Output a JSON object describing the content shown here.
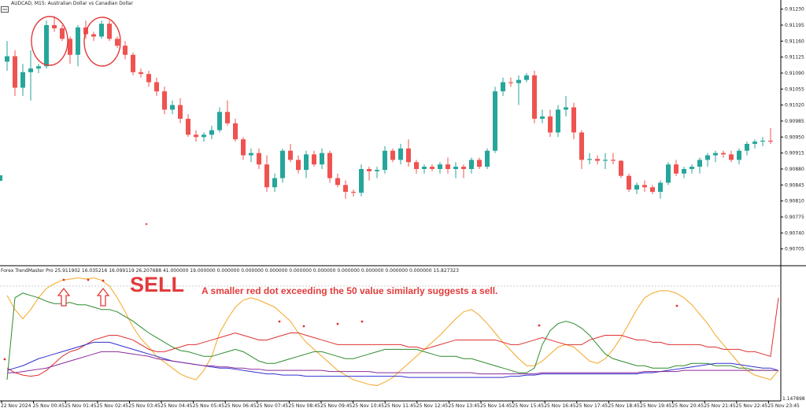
{
  "header": {
    "symbol_title": "AUDCAD, M15:  Australian Dollar vs Canadian Dollar",
    "indicator_title": "Forex TrendMaster Pro 25.911902 16.035216 16.099119 26.207688 41.000000 19.000000 0.000000 0.000000 0.000000 0.000000 0.000000 0.000000 0.000000 0.000000 0.000000 15.827323"
  },
  "annotation": {
    "sell_label": "SELL",
    "note": "A smaller red dot exceeding the 50 value similarly suggests a sell."
  },
  "colors": {
    "bull": "#26a69a",
    "bear": "#ef5350",
    "annotation": "#e23b3b",
    "line_orange": "#f5a623",
    "line_green": "#2e8b2e",
    "line_red": "#e03030",
    "line_blue": "#3030d0",
    "line_purple": "#8a2a9a"
  },
  "icons": [
    "chart-menu-icon",
    "up-arrow-icon",
    "circle-highlight-icon"
  ],
  "chart_data": [
    {
      "type": "candlestick",
      "title": "AUDCAD, M15:  Australian Dollar vs Canadian Dollar",
      "ylim": [
        0.9067,
        0.9125
      ],
      "y_ticks": [
        "0.91230",
        "0.91195",
        "0.91160",
        "0.91125",
        "0.91090",
        "0.91055",
        "0.91020",
        "0.90985",
        "0.90950",
        "0.90915",
        "0.90880",
        "0.90845",
        "0.90810",
        "0.90775",
        "0.90740",
        "0.90705"
      ],
      "x_ticks": [
        "22 Nov 2024",
        "25 Nov 00:45",
        "25 Nov 01:45",
        "25 Nov 02:45",
        "25 Nov 03:45",
        "25 Nov 04:45",
        "25 Nov 05:45",
        "25 Nov 06:45",
        "25 Nov 07:45",
        "25 Nov 08:45",
        "25 Nov 09:45",
        "25 Nov 10:45",
        "25 Nov 11:45",
        "25 Nov 12:45",
        "25 Nov 13:45",
        "25 Nov 14:45",
        "25 Nov 15:45",
        "25 Nov 16:45",
        "25 Nov 17:45",
        "25 Nov 18:45",
        "25 Nov 19:45",
        "25 Nov 20:45",
        "25 Nov 21:45",
        "25 Nov 22:45",
        "25 Nov 23:45"
      ],
      "ohlc": [
        [
          0.91115,
          0.9116,
          0.91095,
          0.91127
        ],
        [
          0.91127,
          0.9114,
          0.9104,
          0.91058
        ],
        [
          0.91058,
          0.9111,
          0.9104,
          0.91092
        ],
        [
          0.91092,
          0.9114,
          0.9103,
          0.911
        ],
        [
          0.911,
          0.9111,
          0.9109,
          0.91105
        ],
        [
          0.91105,
          0.91205,
          0.911,
          0.91195
        ],
        [
          0.91195,
          0.91215,
          0.9118,
          0.91188
        ],
        [
          0.91188,
          0.91195,
          0.9116,
          0.91165
        ],
        [
          0.91165,
          0.9117,
          0.9111,
          0.9113
        ],
        [
          0.9113,
          0.91195,
          0.91105,
          0.9119
        ],
        [
          0.9119,
          0.91205,
          0.91165,
          0.91175
        ],
        [
          0.91175,
          0.9118,
          0.9116,
          0.9117
        ],
        [
          0.9117,
          0.91205,
          0.91165,
          0.91198
        ],
        [
          0.91198,
          0.91205,
          0.9116,
          0.91165
        ],
        [
          0.91165,
          0.9117,
          0.91145,
          0.9115
        ],
        [
          0.9115,
          0.9116,
          0.9112,
          0.9113
        ],
        [
          0.9113,
          0.91135,
          0.91085,
          0.91092
        ],
        [
          0.91092,
          0.911,
          0.9108,
          0.91088
        ],
        [
          0.91088,
          0.91095,
          0.9106,
          0.9107
        ],
        [
          0.9107,
          0.9108,
          0.9104,
          0.9105
        ],
        [
          0.9105,
          0.9106,
          0.91,
          0.9101
        ],
        [
          0.9101,
          0.9103,
          0.91,
          0.9102
        ],
        [
          0.9102,
          0.91035,
          0.9098,
          0.9099
        ],
        [
          0.9099,
          0.91,
          0.9095,
          0.90955
        ],
        [
          0.90955,
          0.90965,
          0.9094,
          0.9095
        ],
        [
          0.9095,
          0.9096,
          0.9094,
          0.90955
        ],
        [
          0.90955,
          0.90975,
          0.90945,
          0.90965
        ],
        [
          0.90965,
          0.91015,
          0.9096,
          0.91005
        ],
        [
          0.91005,
          0.9103,
          0.90975,
          0.9098
        ],
        [
          0.9098,
          0.9099,
          0.9094,
          0.90945
        ],
        [
          0.90945,
          0.9095,
          0.909,
          0.9091
        ],
        [
          0.9091,
          0.90925,
          0.90895,
          0.90915
        ],
        [
          0.90915,
          0.90925,
          0.9088,
          0.9089
        ],
        [
          0.9089,
          0.9091,
          0.9083,
          0.9084
        ],
        [
          0.9084,
          0.9087,
          0.9083,
          0.9086
        ],
        [
          0.9086,
          0.90925,
          0.9085,
          0.9092
        ],
        [
          0.9092,
          0.90935,
          0.90895,
          0.909
        ],
        [
          0.909,
          0.9091,
          0.9087,
          0.90878
        ],
        [
          0.90878,
          0.9092,
          0.9086,
          0.90912
        ],
        [
          0.90912,
          0.9092,
          0.90885,
          0.9089
        ],
        [
          0.9089,
          0.90925,
          0.9088,
          0.90915
        ],
        [
          0.90915,
          0.9092,
          0.9085,
          0.9086
        ],
        [
          0.9086,
          0.9087,
          0.9084,
          0.90845
        ],
        [
          0.90845,
          0.90855,
          0.90815,
          0.9083
        ],
        [
          0.9083,
          0.90835,
          0.9082,
          0.90828
        ],
        [
          0.90828,
          0.9089,
          0.9082,
          0.9088
        ],
        [
          0.9088,
          0.90885,
          0.90855,
          0.90875
        ],
        [
          0.90875,
          0.90885,
          0.9086,
          0.90878
        ],
        [
          0.90878,
          0.9093,
          0.9087,
          0.9092
        ],
        [
          0.9092,
          0.90925,
          0.90895,
          0.909
        ],
        [
          0.909,
          0.90935,
          0.9089,
          0.90925
        ],
        [
          0.90925,
          0.90945,
          0.90885,
          0.90895
        ],
        [
          0.90895,
          0.909,
          0.9087,
          0.9088
        ],
        [
          0.9088,
          0.9089,
          0.9087,
          0.90885
        ],
        [
          0.90885,
          0.9089,
          0.90875,
          0.9088
        ],
        [
          0.9088,
          0.90895,
          0.9087,
          0.9089
        ],
        [
          0.9089,
          0.90905,
          0.9087,
          0.9088
        ],
        [
          0.9088,
          0.90895,
          0.9086,
          0.90885
        ],
        [
          0.90885,
          0.9089,
          0.9086,
          0.9088
        ],
        [
          0.9088,
          0.90905,
          0.9087,
          0.909
        ],
        [
          0.909,
          0.90905,
          0.9088,
          0.90885
        ],
        [
          0.90885,
          0.90925,
          0.9088,
          0.9092
        ],
        [
          0.9092,
          0.9106,
          0.90915,
          0.9105
        ],
        [
          0.9105,
          0.9108,
          0.9104,
          0.9107
        ],
        [
          0.9107,
          0.9108,
          0.9106,
          0.91068
        ],
        [
          0.91068,
          0.91085,
          0.9102,
          0.91075
        ],
        [
          0.91075,
          0.9109,
          0.9107,
          0.91085
        ],
        [
          0.91085,
          0.91095,
          0.9098,
          0.9099
        ],
        [
          0.9099,
          0.9101,
          0.9098,
          0.90995
        ],
        [
          0.90995,
          0.9101,
          0.9095,
          0.9096
        ],
        [
          0.9096,
          0.9102,
          0.9095,
          0.9101
        ],
        [
          0.9101,
          0.9104,
          0.90995,
          0.91015
        ],
        [
          0.91015,
          0.91025,
          0.90945,
          0.9096
        ],
        [
          0.9096,
          0.90965,
          0.9088,
          0.909
        ],
        [
          0.909,
          0.90915,
          0.9089,
          0.90902
        ],
        [
          0.90902,
          0.9091,
          0.9089,
          0.90898
        ],
        [
          0.90898,
          0.90915,
          0.9088,
          0.909
        ],
        [
          0.909,
          0.90915,
          0.9089,
          0.90898
        ],
        [
          0.90898,
          0.909,
          0.9086,
          0.90865
        ],
        [
          0.90865,
          0.9087,
          0.9083,
          0.90835
        ],
        [
          0.90835,
          0.9085,
          0.90825,
          0.90845
        ],
        [
          0.90845,
          0.90855,
          0.9083,
          0.9084
        ],
        [
          0.9084,
          0.90845,
          0.90825,
          0.9083
        ],
        [
          0.9083,
          0.90855,
          0.90815,
          0.9085
        ],
        [
          0.9085,
          0.90895,
          0.90845,
          0.9089
        ],
        [
          0.9089,
          0.909,
          0.90865,
          0.9087
        ],
        [
          0.9087,
          0.90885,
          0.9086,
          0.9088
        ],
        [
          0.9088,
          0.9089,
          0.9087,
          0.90885
        ],
        [
          0.90885,
          0.90905,
          0.9087,
          0.909
        ],
        [
          0.909,
          0.90915,
          0.90885,
          0.9091
        ],
        [
          0.9091,
          0.9092,
          0.90895,
          0.90915
        ],
        [
          0.90915,
          0.9092,
          0.90905,
          0.90912
        ],
        [
          0.90912,
          0.9092,
          0.90895,
          0.909
        ],
        [
          0.909,
          0.90925,
          0.9089,
          0.9092
        ],
        [
          0.9092,
          0.9094,
          0.9091,
          0.90935
        ],
        [
          0.90935,
          0.90945,
          0.90925,
          0.9094
        ],
        [
          0.9094,
          0.9095,
          0.9093,
          0.90942
        ],
        [
          0.90942,
          0.9097,
          0.90935,
          0.9094
        ]
      ]
    },
    {
      "type": "line",
      "title": "Forex TrendMaster Pro",
      "ylim": [
        0,
        100
      ],
      "level_line": 90,
      "series": [
        {
          "values": [
            82,
            70,
            62,
            70,
            80,
            88,
            92,
            95,
            96,
            97,
            96,
            97,
            95,
            90,
            80,
            68,
            55,
            45,
            38,
            30,
            25,
            20,
            15,
            12,
            10,
            18,
            30,
            50,
            62,
            72,
            78,
            80,
            78,
            75,
            72,
            66,
            60,
            50,
            42,
            36,
            30,
            24,
            18,
            14,
            10,
            8,
            6,
            5,
            8,
            12,
            18,
            24,
            30,
            36,
            42,
            48,
            55,
            62,
            68,
            70,
            65,
            58,
            50,
            42,
            35,
            28,
            22,
            22,
            26,
            32,
            38,
            40,
            38,
            32,
            26,
            24,
            28,
            36,
            46,
            58,
            70,
            80,
            84,
            86,
            86,
            84,
            80,
            74,
            66,
            58,
            48,
            40,
            32,
            24,
            18,
            14,
            12,
            10,
            18
          ]
        },
        {
          "values": [
            10,
            80,
            84,
            82,
            80,
            77,
            75,
            75,
            76,
            74,
            74,
            72,
            70,
            70,
            68,
            64,
            60,
            55,
            50,
            46,
            42,
            38,
            35,
            34,
            32,
            30,
            30,
            32,
            34,
            36,
            34,
            30,
            26,
            24,
            24,
            26,
            28,
            30,
            32,
            34,
            34,
            32,
            30,
            28,
            28,
            30,
            32,
            34,
            36,
            36,
            36,
            36,
            36,
            34,
            32,
            30,
            30,
            30,
            28,
            28,
            26,
            24,
            22,
            20,
            18,
            16,
            16,
            20,
            40,
            52,
            58,
            60,
            58,
            54,
            48,
            40,
            32,
            28,
            26,
            24,
            22,
            22,
            20,
            20,
            20,
            22,
            22,
            24,
            24,
            24,
            22,
            22,
            22,
            20,
            20,
            18,
            18,
            18,
            18
          ]
        },
        {
          "values": [
            20,
            16,
            14,
            13,
            14,
            18,
            24,
            30,
            34,
            36,
            40,
            44,
            46,
            48,
            48,
            46,
            44,
            40,
            36,
            34,
            34,
            36,
            38,
            40,
            40,
            42,
            44,
            46,
            48,
            50,
            48,
            46,
            44,
            44,
            46,
            48,
            50,
            50,
            48,
            46,
            44,
            42,
            40,
            40,
            40,
            40,
            40,
            40,
            40,
            40,
            40,
            38,
            38,
            36,
            38,
            40,
            42,
            44,
            44,
            44,
            44,
            44,
            44,
            42,
            40,
            40,
            42,
            44,
            46,
            44,
            42,
            40,
            40,
            40,
            44,
            46,
            48,
            48,
            48,
            46,
            44,
            44,
            42,
            42,
            40,
            40,
            40,
            40,
            40,
            38,
            38,
            36,
            36,
            36,
            34,
            34,
            32,
            30,
            80
          ]
        },
        {
          "values": [
            18,
            20,
            22,
            25,
            28,
            30,
            32,
            34,
            36,
            38,
            40,
            42,
            42,
            42,
            40,
            38,
            36,
            34,
            32,
            30,
            28,
            26,
            25,
            24,
            23,
            22,
            21,
            20,
            20,
            19,
            18,
            17,
            16,
            15,
            15,
            14,
            14,
            14,
            13,
            13,
            13,
            13,
            13,
            13,
            13,
            13,
            13,
            13,
            13,
            13,
            13,
            12,
            12,
            12,
            12,
            12,
            12,
            12,
            12,
            12,
            12,
            12,
            12,
            12,
            13,
            13,
            14,
            14,
            15,
            15,
            15,
            15,
            15,
            15,
            15,
            15,
            15,
            15,
            15,
            15,
            15,
            16,
            16,
            17,
            18,
            19,
            20,
            21,
            22,
            23,
            24,
            24,
            24,
            23,
            22,
            21,
            20,
            20,
            18
          ]
        },
        {
          "values": [
            16,
            16,
            17,
            18,
            19,
            20,
            22,
            24,
            26,
            28,
            30,
            32,
            34,
            34,
            34,
            33,
            32,
            31,
            30,
            28,
            27,
            26,
            25,
            24,
            23,
            22,
            22,
            21,
            21,
            20,
            20,
            19,
            19,
            18,
            18,
            18,
            18,
            18,
            18,
            18,
            18,
            17,
            17,
            17,
            17,
            17,
            17,
            16,
            16,
            16,
            16,
            16,
            16,
            16,
            16,
            16,
            16,
            16,
            16,
            16,
            15,
            15,
            15,
            15,
            15,
            15,
            15,
            15,
            16,
            16,
            16,
            16,
            16,
            16,
            16,
            16,
            16,
            16,
            16,
            16,
            16,
            17,
            17,
            17,
            17,
            17,
            18,
            18,
            18,
            18,
            18,
            18,
            18,
            18,
            18,
            18,
            18,
            18,
            18
          ]
        }
      ]
    }
  ]
}
